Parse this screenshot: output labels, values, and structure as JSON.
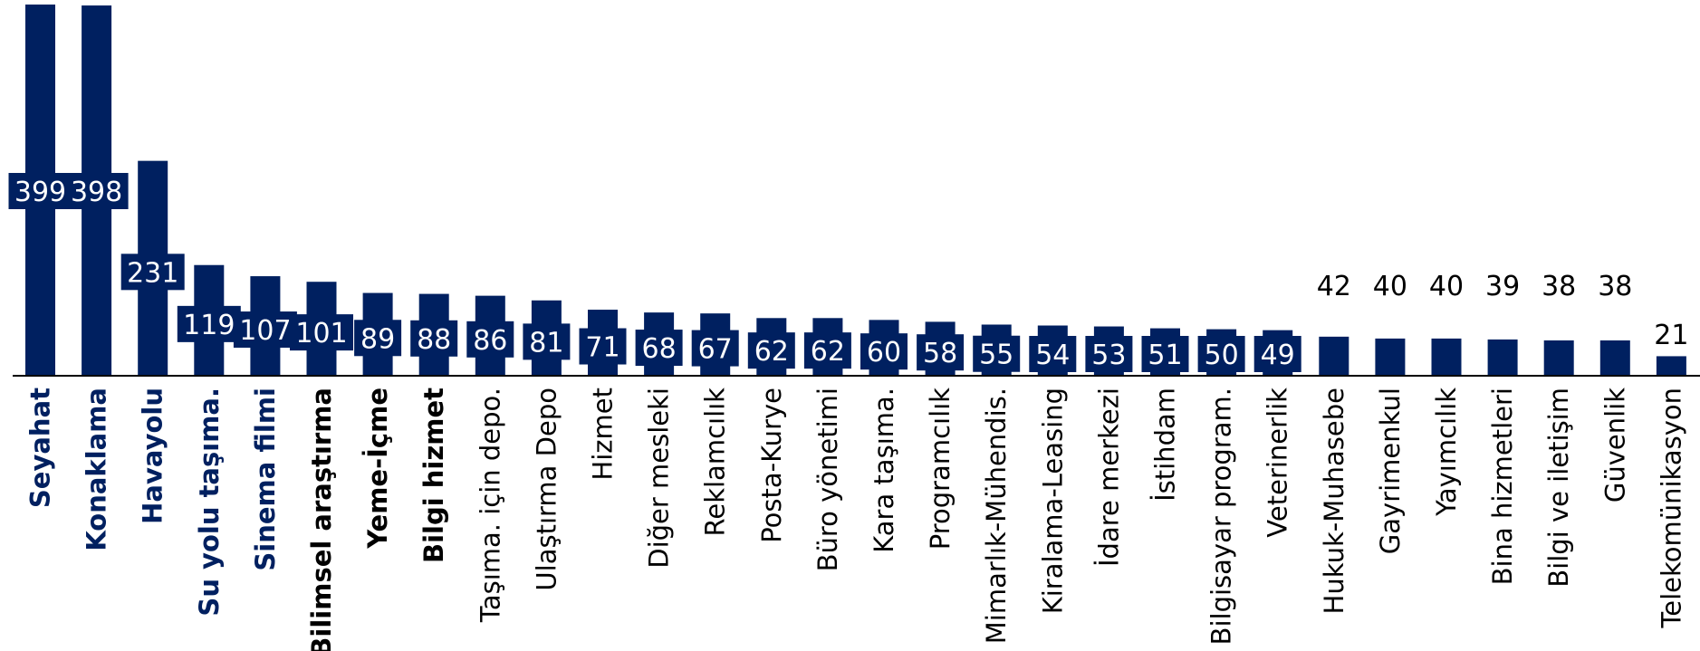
{
  "chart_data": {
    "type": "bar",
    "orientation": "vertical",
    "ylim": [
      0,
      400
    ],
    "grid": false,
    "legend": "none",
    "bar_color": "#002060",
    "categories": [
      "Seyahat",
      "Konaklama",
      "Havayolu",
      "Su yolu taşıma.",
      "Sinema filmi",
      "Bilimsel araştırma",
      "Yeme-İçme",
      "Bilgi hizmet",
      "Taşıma. için depo.",
      "Ulaştırma Depo",
      "Hizmet",
      "Diğer mesleki",
      "Reklamcılık",
      "Posta-Kurye",
      "Büro yönetimi",
      "Kara taşıma.",
      "Programcılık",
      "Mimarlık-Mühendis.",
      "Kiralama-Leasing",
      "İdare merkezi",
      "İstihdam",
      "Bilgisayar program.",
      "Veterinerlik",
      "Hukuk-Muhasebe",
      "Gayrimenkul",
      "Yayımcılık",
      "Bina hizmetleri",
      "Bilgi ve iletişim",
      "Güvenlik",
      "Telekomünikasyon"
    ],
    "values": [
      399,
      398,
      231,
      119,
      107,
      101,
      89,
      88,
      86,
      81,
      71,
      68,
      67,
      62,
      62,
      60,
      58,
      55,
      54,
      53,
      51,
      50,
      49,
      42,
      40,
      40,
      39,
      38,
      38,
      21
    ],
    "category_styles": [
      "bold-blue",
      "bold-blue",
      "bold-blue",
      "bold-blue",
      "bold-blue",
      "bold-black",
      "bold-black",
      "bold-black",
      "normal",
      "normal",
      "normal",
      "normal",
      "normal",
      "normal",
      "normal",
      "normal",
      "normal",
      "normal",
      "normal",
      "normal",
      "normal",
      "normal",
      "normal",
      "normal",
      "normal",
      "normal",
      "normal",
      "normal",
      "normal",
      "normal"
    ],
    "label_colors": {
      "bold-blue": "#002060",
      "bold-black": "#000000",
      "normal": "#000000"
    }
  }
}
